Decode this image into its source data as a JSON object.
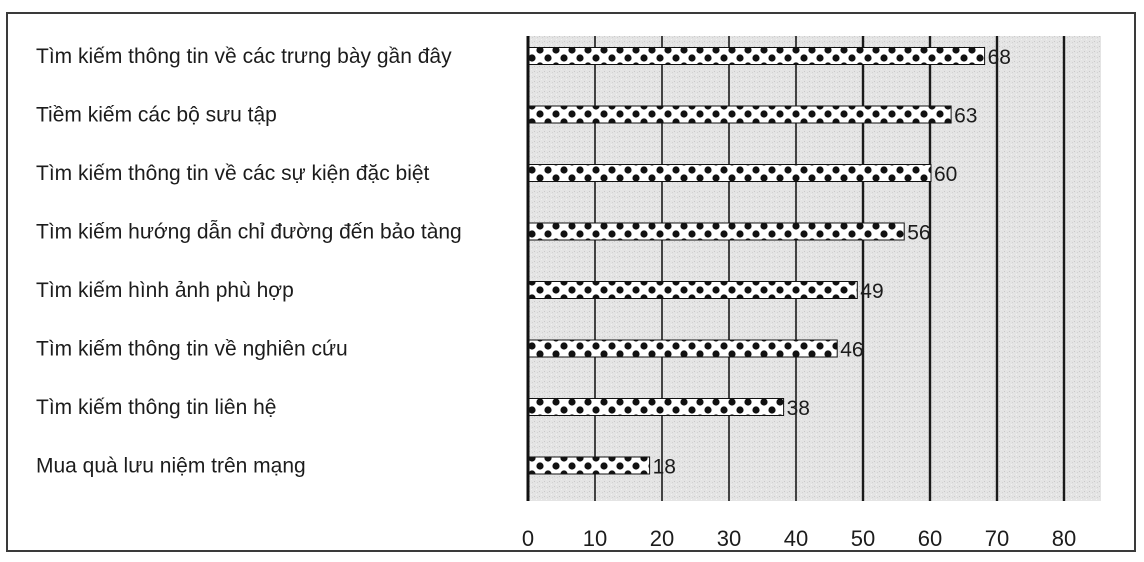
{
  "chart_data": {
    "type": "bar",
    "orientation": "horizontal",
    "categories": [
      "Tìm kiếm thông tin về các trưng bày gần đây",
      "Tiềm kiếm các bộ sưu tập",
      "Tìm kiếm thông tin về các sự kiện đặc biệt",
      "Tìm kiếm hướng dẫn chỉ đường đến bảo tàng",
      "Tìm kiếm hình ảnh phù hợp",
      "Tìm kiếm thông tin về nghiên cứu",
      "Tìm kiếm thông tin liên hệ",
      "Mua quà lưu niệm trên mạng"
    ],
    "values": [
      68,
      63,
      60,
      56,
      49,
      46,
      38,
      18
    ],
    "data_labels": [
      "68",
      "63",
      "60",
      "56",
      "49",
      "46",
      "38",
      "18"
    ],
    "xlim": [
      0,
      84
    ],
    "xticks": [
      0,
      10,
      20,
      30,
      40,
      50,
      60,
      70,
      80
    ],
    "xtick_labels": [
      "0",
      "10",
      "20",
      "30",
      "40",
      "50",
      "60",
      "70",
      "80"
    ],
    "title": "",
    "xlabel": "",
    "ylabel": "",
    "grid": true,
    "legend": "none",
    "colors": {
      "bar_fill": "#ffffff",
      "bar_dots": "#111111",
      "plot_background": "#e6e6e6",
      "grid_line": "#1a1a1a",
      "text": "#1c1c1c"
    }
  }
}
